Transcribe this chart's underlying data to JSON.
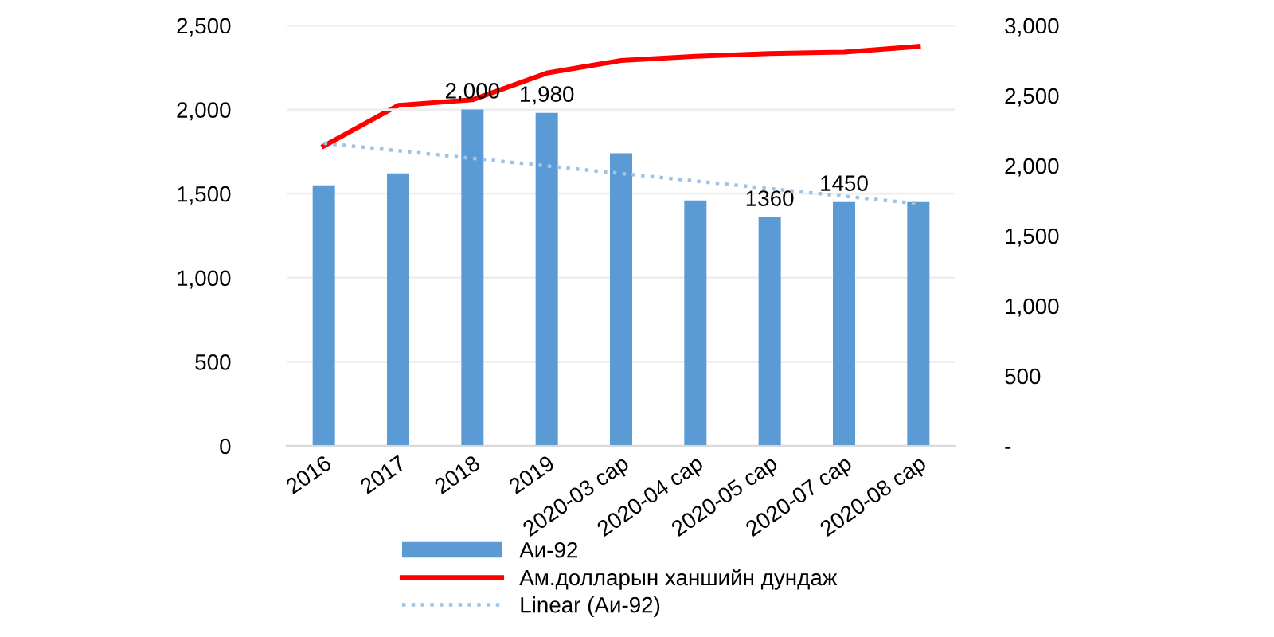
{
  "chart_data": {
    "type": "bar",
    "categories": [
      "2016",
      "2017",
      "2018",
      "2019",
      "2020-03 сар",
      "2020-04 сар",
      "2020-05 сар",
      "2020-07 сар",
      "2020-08 сар"
    ],
    "series": [
      {
        "name": "Аи-92",
        "color": "#5b9bd5",
        "values": [
          1550,
          1620,
          2000,
          1980,
          1740,
          1460,
          1360,
          1450,
          1450
        ],
        "value_labels": [
          null,
          null,
          "2,000",
          "1,980",
          null,
          null,
          "1360",
          "1450",
          null
        ]
      },
      {
        "name": "Ам.долларын ханшийн дундаж",
        "type": "line",
        "axis": "y2",
        "color": "#ff0000",
        "line_style": "solid",
        "values": [
          2140,
          2430,
          2470,
          2660,
          2750,
          2780,
          2800,
          2810,
          2850
        ]
      },
      {
        "name": "Linear (Аи-92)",
        "type": "line",
        "color": "#9dc3e6",
        "line_style": "dotted",
        "values": [
          1800,
          1755,
          1710,
          1665,
          1620,
          1575,
          1530,
          1485,
          1440
        ]
      }
    ],
    "ylim": [
      0,
      2500
    ],
    "yticks": [
      0,
      500,
      {
        "value": 1000,
        "label": "1,000"
      },
      {
        "value": 1500,
        "label": "1,500"
      },
      {
        "value": 2000,
        "label": "2,000"
      },
      {
        "value": 2500,
        "label": "2,500"
      }
    ],
    "y2lim": [
      0,
      3000
    ],
    "y2ticks": [
      {
        "value": 0,
        "label": "-"
      },
      500,
      {
        "value": 1000,
        "label": "1,000"
      },
      {
        "value": 1500,
        "label": "1,500"
      },
      {
        "value": 2000,
        "label": "2,000"
      },
      {
        "value": 2500,
        "label": "2,500"
      },
      {
        "value": 3000,
        "label": "3,000"
      }
    ],
    "grid": "y",
    "legend": "bottom",
    "marker": "none"
  }
}
